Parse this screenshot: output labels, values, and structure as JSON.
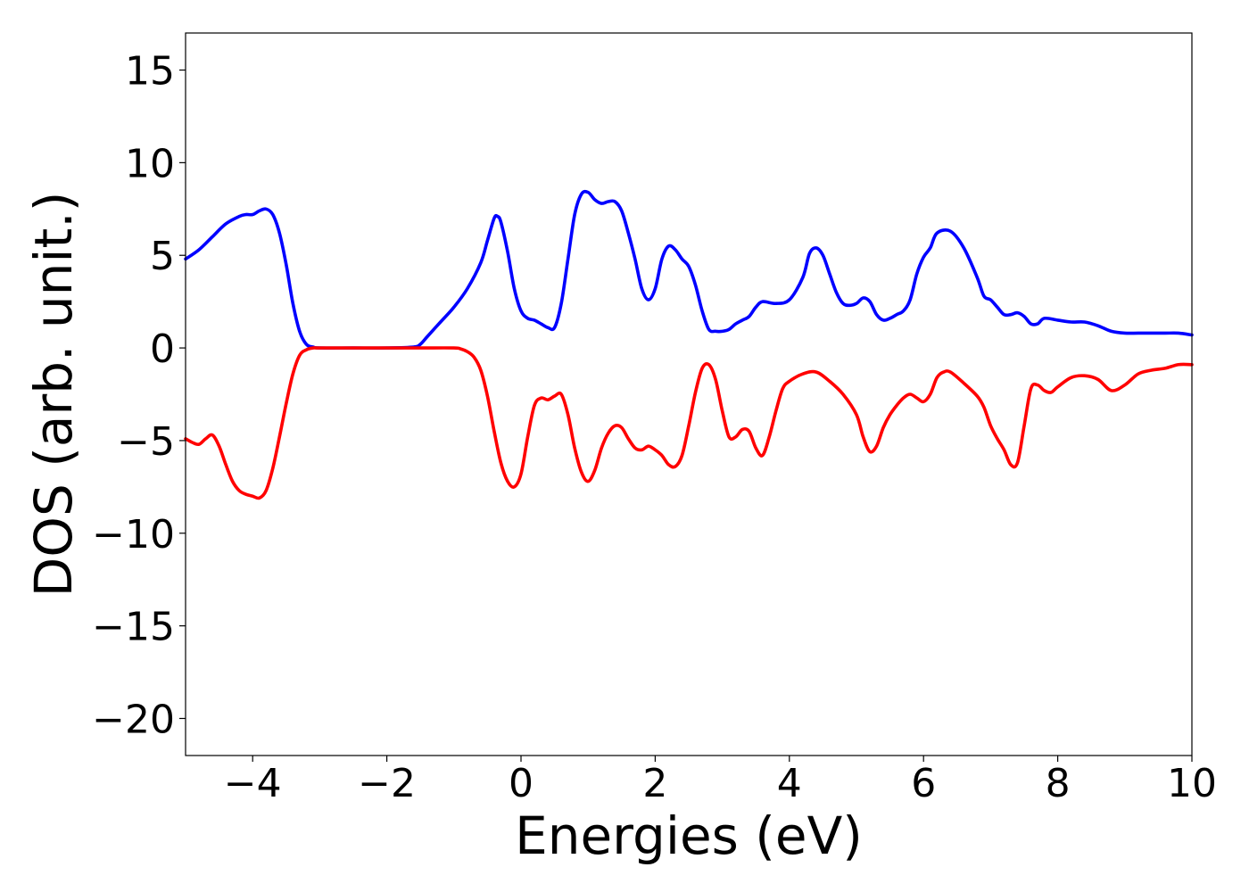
{
  "chart_data": {
    "type": "line",
    "title": "",
    "xlabel": "Energies (eV)",
    "ylabel": "DOS (arb. unit.)",
    "xlim": [
      -5,
      10
    ],
    "ylim": [
      -22,
      17
    ],
    "grid": false,
    "legend": "none",
    "xticks": [
      -4,
      -2,
      0,
      2,
      4,
      6,
      8,
      10
    ],
    "xtick_labels": [
      "−4",
      "−2",
      "0",
      "2",
      "4",
      "6",
      "8",
      "10"
    ],
    "yticks": [
      15,
      10,
      5,
      0,
      -5,
      -10,
      -15,
      -20
    ],
    "ytick_labels": [
      "15",
      "10",
      "5",
      "0",
      "−5",
      "−10",
      "−15",
      "−20"
    ],
    "series": [
      {
        "color": "#0000ff",
        "x": [
          -5.0,
          -4.8,
          -4.6,
          -4.4,
          -4.2,
          -4.1,
          -4.0,
          -3.9,
          -3.8,
          -3.7,
          -3.6,
          -3.5,
          -3.4,
          -3.3,
          -3.2,
          -3.1,
          -3.0,
          -2.5,
          -2.0,
          -1.6,
          -1.5,
          -1.4,
          -1.2,
          -1.0,
          -0.8,
          -0.6,
          -0.5,
          -0.4,
          -0.35,
          -0.3,
          -0.2,
          -0.1,
          0.0,
          0.1,
          0.2,
          0.3,
          0.4,
          0.5,
          0.6,
          0.7,
          0.8,
          0.9,
          1.0,
          1.1,
          1.2,
          1.3,
          1.4,
          1.5,
          1.6,
          1.7,
          1.8,
          1.9,
          2.0,
          2.1,
          2.2,
          2.3,
          2.4,
          2.5,
          2.6,
          2.7,
          2.8,
          2.9,
          3.0,
          3.1,
          3.2,
          3.3,
          3.4,
          3.5,
          3.6,
          3.8,
          4.0,
          4.2,
          4.3,
          4.4,
          4.5,
          4.6,
          4.7,
          4.8,
          4.9,
          5.0,
          5.1,
          5.2,
          5.3,
          5.4,
          5.5,
          5.6,
          5.7,
          5.8,
          5.9,
          6.0,
          6.1,
          6.2,
          6.4,
          6.6,
          6.8,
          6.9,
          7.0,
          7.1,
          7.2,
          7.3,
          7.4,
          7.5,
          7.6,
          7.7,
          7.8,
          8.0,
          8.2,
          8.4,
          8.6,
          8.8,
          9.0,
          9.2,
          9.4,
          9.6,
          9.8,
          10.0
        ],
        "y": [
          4.8,
          5.3,
          6.0,
          6.7,
          7.1,
          7.2,
          7.2,
          7.4,
          7.5,
          7.2,
          6.2,
          4.5,
          2.4,
          0.9,
          0.2,
          0.05,
          0.0,
          0.0,
          0.0,
          0.05,
          0.2,
          0.6,
          1.4,
          2.2,
          3.2,
          4.6,
          5.8,
          7.0,
          7.1,
          6.8,
          5.2,
          3.2,
          2.0,
          1.6,
          1.5,
          1.3,
          1.1,
          1.1,
          2.4,
          4.8,
          7.2,
          8.3,
          8.4,
          8.0,
          7.8,
          7.9,
          7.9,
          7.4,
          6.2,
          4.8,
          3.2,
          2.6,
          3.2,
          4.8,
          5.5,
          5.3,
          4.8,
          4.4,
          3.4,
          2.0,
          1.0,
          0.9,
          0.9,
          1.0,
          1.3,
          1.5,
          1.7,
          2.2,
          2.5,
          2.4,
          2.6,
          3.8,
          5.1,
          5.4,
          5.0,
          4.0,
          3.0,
          2.4,
          2.3,
          2.4,
          2.7,
          2.5,
          1.8,
          1.5,
          1.6,
          1.8,
          2.0,
          2.6,
          4.0,
          4.9,
          5.4,
          6.2,
          6.3,
          5.4,
          3.8,
          2.8,
          2.6,
          2.2,
          1.8,
          1.8,
          1.9,
          1.7,
          1.3,
          1.3,
          1.6,
          1.5,
          1.4,
          1.4,
          1.2,
          0.9,
          0.8,
          0.8,
          0.8,
          0.8,
          0.8,
          0.7
        ]
      },
      {
        "color": "#ff0000",
        "x": [
          -5.0,
          -4.9,
          -4.8,
          -4.7,
          -4.6,
          -4.5,
          -4.4,
          -4.3,
          -4.2,
          -4.1,
          -4.0,
          -3.9,
          -3.8,
          -3.7,
          -3.6,
          -3.5,
          -3.4,
          -3.3,
          -3.2,
          -3.1,
          -3.0,
          -2.5,
          -2.0,
          -1.5,
          -1.0,
          -0.9,
          -0.8,
          -0.7,
          -0.6,
          -0.5,
          -0.4,
          -0.3,
          -0.2,
          -0.1,
          0.0,
          0.1,
          0.2,
          0.3,
          0.4,
          0.5,
          0.6,
          0.7,
          0.8,
          0.9,
          1.0,
          1.1,
          1.2,
          1.3,
          1.4,
          1.5,
          1.6,
          1.7,
          1.8,
          1.9,
          2.0,
          2.1,
          2.2,
          2.3,
          2.4,
          2.5,
          2.6,
          2.7,
          2.8,
          2.9,
          3.0,
          3.1,
          3.2,
          3.3,
          3.4,
          3.5,
          3.6,
          3.7,
          3.8,
          3.9,
          4.0,
          4.2,
          4.4,
          4.6,
          4.8,
          5.0,
          5.1,
          5.2,
          5.3,
          5.4,
          5.5,
          5.6,
          5.7,
          5.8,
          5.9,
          6.0,
          6.1,
          6.2,
          6.3,
          6.4,
          6.6,
          6.8,
          6.9,
          7.0,
          7.1,
          7.2,
          7.3,
          7.4,
          7.5,
          7.6,
          7.7,
          7.8,
          7.9,
          8.0,
          8.2,
          8.4,
          8.6,
          8.8,
          9.0,
          9.2,
          9.4,
          9.6,
          9.8,
          10.0
        ],
        "y": [
          -4.9,
          -5.1,
          -5.2,
          -4.9,
          -4.7,
          -5.3,
          -6.3,
          -7.2,
          -7.7,
          -7.9,
          -8.0,
          -8.1,
          -7.7,
          -6.5,
          -4.8,
          -3.0,
          -1.4,
          -0.4,
          -0.1,
          0.0,
          0.0,
          0.0,
          0.0,
          0.0,
          0.0,
          -0.05,
          -0.2,
          -0.5,
          -1.2,
          -2.6,
          -4.5,
          -6.2,
          -7.2,
          -7.5,
          -6.8,
          -4.8,
          -3.1,
          -2.7,
          -2.8,
          -2.6,
          -2.5,
          -3.6,
          -5.4,
          -6.7,
          -7.2,
          -6.6,
          -5.4,
          -4.6,
          -4.2,
          -4.3,
          -4.9,
          -5.4,
          -5.5,
          -5.3,
          -5.5,
          -5.8,
          -6.3,
          -6.4,
          -5.8,
          -4.2,
          -2.4,
          -1.1,
          -0.9,
          -1.7,
          -3.4,
          -4.8,
          -4.8,
          -4.4,
          -4.5,
          -5.4,
          -5.8,
          -4.8,
          -3.4,
          -2.2,
          -1.8,
          -1.4,
          -1.3,
          -1.8,
          -2.5,
          -3.6,
          -4.8,
          -5.6,
          -5.3,
          -4.3,
          -3.6,
          -3.1,
          -2.7,
          -2.5,
          -2.7,
          -2.9,
          -2.5,
          -1.6,
          -1.3,
          -1.3,
          -1.9,
          -2.6,
          -3.2,
          -4.2,
          -4.9,
          -5.5,
          -6.3,
          -6.2,
          -4.2,
          -2.2,
          -2.0,
          -2.3,
          -2.4,
          -2.1,
          -1.6,
          -1.5,
          -1.7,
          -2.3,
          -2.0,
          -1.4,
          -1.2,
          -1.1,
          -0.9,
          -0.9
        ]
      }
    ]
  }
}
